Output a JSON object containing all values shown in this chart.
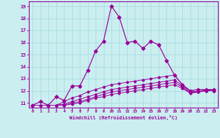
{
  "xlabel": "Windchill (Refroidissement éolien,°C)",
  "background_color": "#cbeef0",
  "grid_color": "#a8dde0",
  "line_color": "#990099",
  "x_ticks": [
    0,
    1,
    2,
    3,
    4,
    5,
    6,
    7,
    8,
    9,
    10,
    11,
    12,
    13,
    14,
    15,
    16,
    17,
    18,
    19,
    20,
    21,
    22,
    23
  ],
  "y_ticks": [
    11,
    12,
    13,
    14,
    15,
    16,
    17,
    18,
    19
  ],
  "ylim": [
    10.6,
    19.4
  ],
  "xlim": [
    -0.5,
    23.5
  ],
  "series": [
    [
      10.8,
      11.1,
      10.8,
      11.5,
      11.2,
      12.4,
      12.4,
      13.7,
      15.3,
      16.1,
      19.0,
      18.1,
      16.0,
      16.1,
      15.5,
      16.1,
      15.8,
      14.5,
      13.3,
      12.5,
      12.0,
      12.1,
      12.1,
      12.1
    ],
    [
      10.8,
      10.8,
      10.8,
      10.8,
      11.1,
      11.4,
      11.6,
      11.9,
      12.1,
      12.3,
      12.5,
      12.6,
      12.7,
      12.8,
      12.9,
      13.0,
      13.1,
      13.2,
      13.3,
      12.5,
      12.0,
      11.9,
      12.1,
      12.0
    ],
    [
      10.8,
      10.8,
      10.8,
      10.8,
      10.9,
      11.1,
      11.3,
      11.5,
      11.7,
      11.9,
      12.1,
      12.2,
      12.3,
      12.4,
      12.5,
      12.6,
      12.7,
      12.8,
      12.9,
      12.4,
      11.9,
      11.9,
      12.0,
      12.0
    ],
    [
      10.8,
      10.8,
      10.8,
      10.8,
      10.8,
      11.0,
      11.1,
      11.3,
      11.5,
      11.7,
      11.9,
      12.0,
      12.1,
      12.2,
      12.3,
      12.4,
      12.5,
      12.6,
      12.7,
      12.3,
      11.8,
      11.9,
      12.0,
      12.0
    ],
    [
      10.8,
      10.8,
      10.8,
      10.8,
      10.8,
      10.9,
      11.0,
      11.2,
      11.4,
      11.5,
      11.7,
      11.8,
      11.9,
      12.0,
      12.1,
      12.2,
      12.3,
      12.4,
      12.5,
      12.2,
      11.8,
      11.9,
      12.0,
      12.0
    ]
  ],
  "marker_size_main": 2.5,
  "marker_size_sub": 1.8,
  "linewidth_main": 0.9,
  "linewidth_sub": 0.7
}
